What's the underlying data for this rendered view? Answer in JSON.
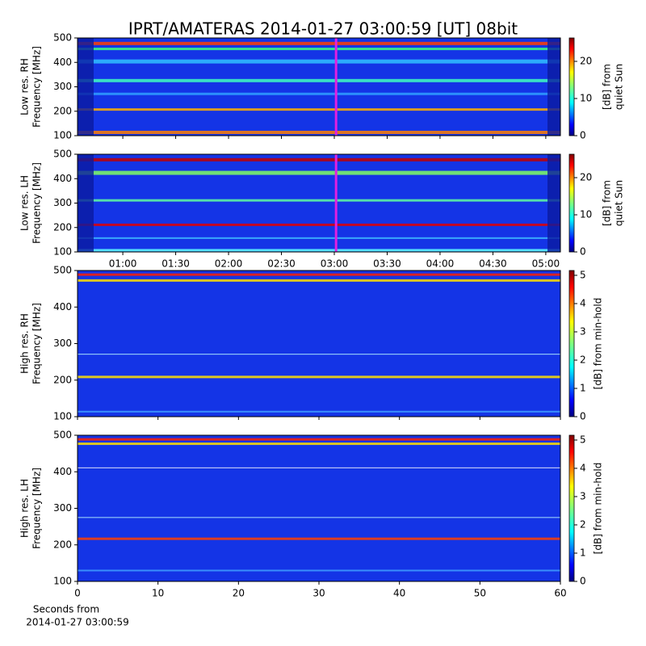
{
  "chart_data": [
    {
      "type": "heatmap",
      "title": "IPRT/AMATERAS 2014-01-27 03:00:59 [UT]   08bit",
      "ylabel": [
        "Low res. RH",
        "Frequency [MHz]"
      ],
      "ylim": [
        100,
        500
      ],
      "yticks": [
        100,
        200,
        300,
        400,
        500
      ],
      "xlim": [
        34.3,
        308.3
      ],
      "xticks": [
        60,
        90,
        120,
        150,
        180,
        210,
        240,
        270,
        300
      ],
      "show_xtick_labels": false,
      "marker_x": 181,
      "marker_color": "#e020e0",
      "colormap": "jet",
      "clim": [
        0,
        26.3
      ],
      "cticks": [
        0,
        10,
        20
      ],
      "clabel": [
        "[dB] from",
        "quiet Sun"
      ]
    },
    {
      "type": "heatmap",
      "ylabel": [
        "Low res. LH",
        "Frequency [MHz]"
      ],
      "ylim": [
        100,
        500
      ],
      "yticks": [
        100,
        200,
        300,
        400,
        500
      ],
      "xlim": [
        34.3,
        308.3
      ],
      "xticks": [
        {
          "value": 60,
          "label": "01:00"
        },
        {
          "value": 90,
          "label": "01:30"
        },
        {
          "value": 120,
          "label": "02:00"
        },
        {
          "value": 150,
          "label": "02:30"
        },
        {
          "value": 180,
          "label": "03:00"
        },
        {
          "value": 210,
          "label": "03:30"
        },
        {
          "value": 240,
          "label": "04:00"
        },
        {
          "value": 270,
          "label": "04:30"
        },
        {
          "value": 300,
          "label": "05:00"
        }
      ],
      "show_xtick_labels": true,
      "marker_x": 181,
      "marker_color": "#e020e0",
      "colormap": "jet",
      "clim": [
        0,
        26.3
      ],
      "cticks": [
        0,
        10,
        20
      ],
      "clabel": [
        "[dB] from",
        "quiet Sun"
      ]
    },
    {
      "type": "heatmap",
      "ylabel": [
        "High res. RH",
        "Frequency [MHz]"
      ],
      "ylim": [
        100,
        500
      ],
      "yticks": [
        100,
        200,
        300,
        400,
        500
      ],
      "xlim": [
        0,
        60
      ],
      "xticks": [
        0,
        10,
        20,
        30,
        40,
        50,
        60
      ],
      "show_xtick_labels": false,
      "colormap": "jet",
      "clim": [
        0,
        5.17
      ],
      "cticks": [
        0,
        1,
        2,
        3,
        4,
        5
      ],
      "clabel": [
        "[dB] from min-hold"
      ]
    },
    {
      "type": "heatmap",
      "ylabel": [
        "High res. LH",
        "Frequency [MHz]"
      ],
      "ylim": [
        100,
        500
      ],
      "yticks": [
        100,
        200,
        300,
        400,
        500
      ],
      "xlim": [
        0,
        60
      ],
      "xticks": [
        0,
        10,
        20,
        30,
        40,
        50,
        60
      ],
      "show_xtick_labels": true,
      "xlabel": [
        "Seconds from",
        "2014-01-27 03:00:59"
      ],
      "colormap": "jet",
      "clim": [
        0,
        5.17
      ],
      "cticks": [
        0,
        1,
        2,
        3,
        4,
        5
      ],
      "clabel": [
        "[dB] from min-hold"
      ]
    }
  ]
}
